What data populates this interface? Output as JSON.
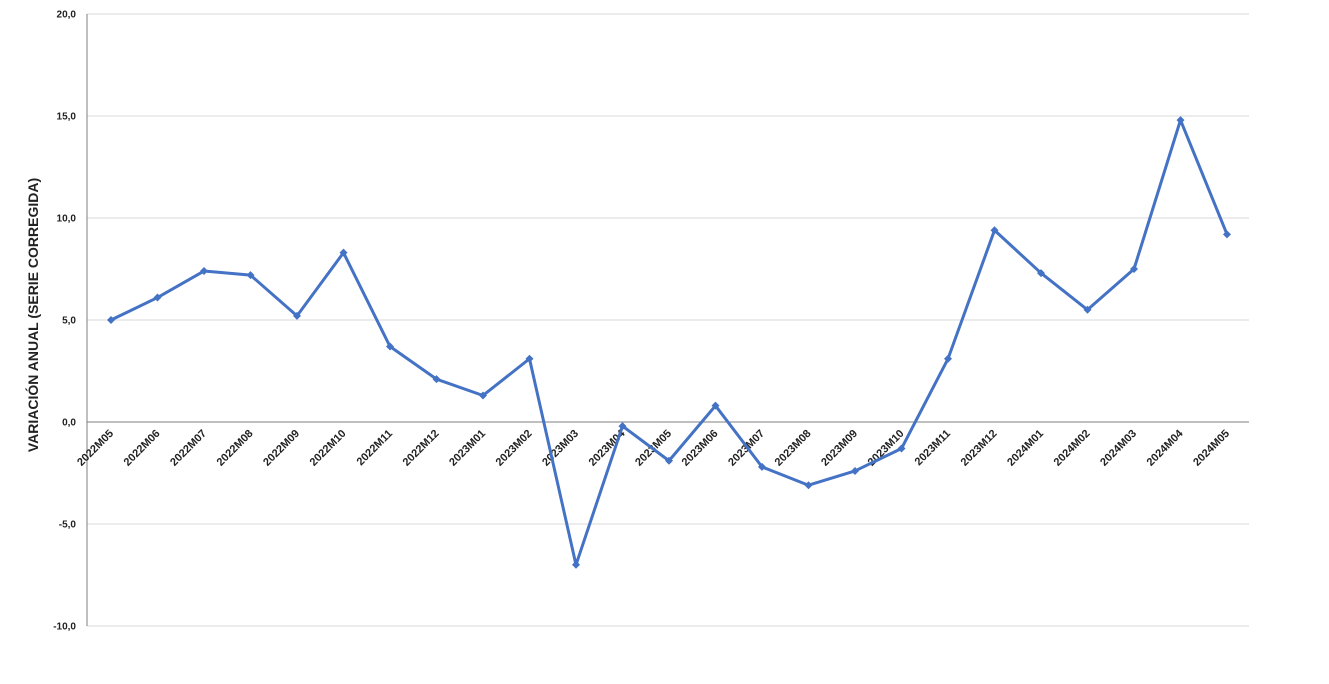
{
  "chart_data": {
    "type": "line",
    "title": "",
    "xlabel": "",
    "ylabel": "VARIACIÓN ANUAL (SERIE CORREGIDA)",
    "ylim": [
      -10,
      20
    ],
    "yticks": [
      "-10,0",
      "-5,0",
      "0,0",
      "5,0",
      "10,0",
      "15,0",
      "20,0"
    ],
    "ytick_values": [
      -10,
      -5,
      0,
      5,
      10,
      15,
      20
    ],
    "grid": true,
    "legend": "none",
    "categories": [
      "2022M05",
      "2022M06",
      "2022M07",
      "2022M08",
      "2022M09",
      "2022M10",
      "2022M11",
      "2022M12",
      "2023M01",
      "2023M02",
      "2023M03",
      "2023M04",
      "2023M05",
      "2023M06",
      "2023M07",
      "2023M08",
      "2023M09",
      "2023M10",
      "2023M11",
      "2023M12",
      "2024M01",
      "2024M02",
      "2024M03",
      "2024M04",
      "2024M05"
    ],
    "series": [
      {
        "color": "#4472c4",
        "marker": "diamond",
        "values": [
          5.0,
          6.1,
          7.4,
          7.2,
          5.2,
          8.3,
          3.7,
          2.1,
          1.3,
          3.1,
          -7.0,
          -0.2,
          -1.9,
          0.8,
          -2.2,
          -3.1,
          -2.4,
          -1.3,
          3.1,
          9.4,
          7.3,
          5.5,
          7.5,
          14.8,
          9.2
        ]
      }
    ]
  }
}
